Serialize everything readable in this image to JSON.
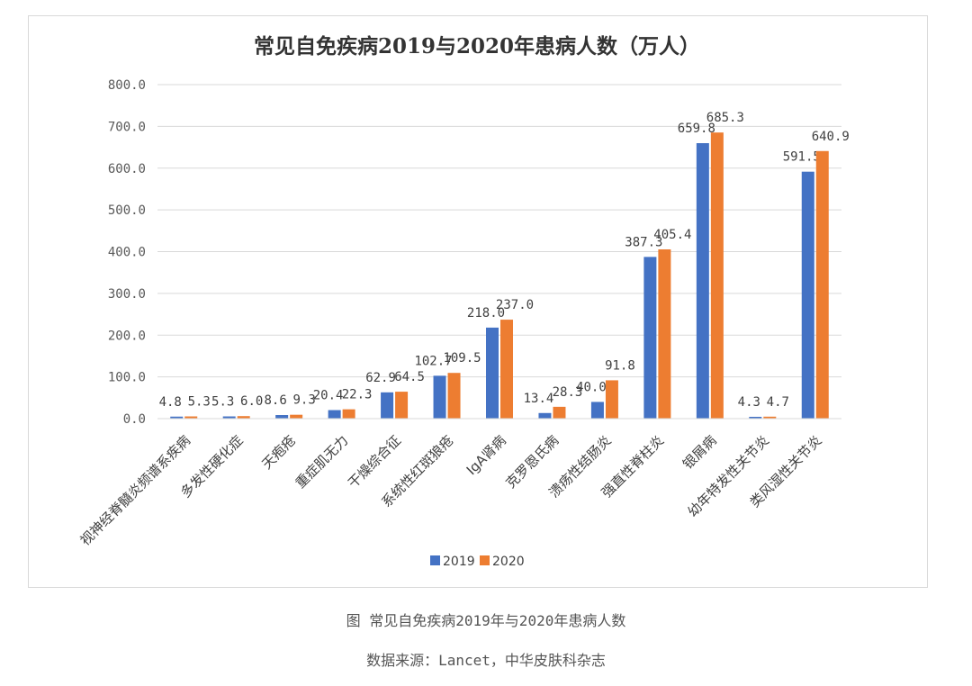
{
  "chart_data": {
    "type": "bar",
    "title": "常见自免疾病2019与2020年患病人数（万人）",
    "categories": [
      "视神经脊髓炎频谱系疾病",
      "多发性硬化症",
      "天疱疮",
      "重症肌无力",
      "干燥综合征",
      "系统性红斑狼疮",
      "IgA肾病",
      "克罗恩氏病",
      "溃疡性结肠炎",
      "强直性脊柱炎",
      "银屑病",
      "幼年特发性关节炎",
      "类风湿性关节炎"
    ],
    "series": [
      {
        "name": "2019",
        "color": "#4472c4",
        "values": [
          4.8,
          5.3,
          8.6,
          20.4,
          62.9,
          102.7,
          218.0,
          13.4,
          40.0,
          387.3,
          659.8,
          4.3,
          591.5
        ],
        "labels": [
          "4.8",
          "5.3",
          "8.6",
          "20.4",
          "62.9",
          "102.7",
          "218.0",
          "13.4",
          "40.0",
          "387.3",
          "659.8",
          "4.3",
          "591.5"
        ]
      },
      {
        "name": "2020",
        "color": "#ed7d31",
        "values": [
          5.3,
          6.0,
          9.3,
          22.3,
          64.5,
          109.5,
          237.0,
          28.3,
          91.8,
          405.4,
          685.3,
          4.7,
          640.9
        ],
        "labels": [
          "5.3",
          "6.0",
          "9.3",
          "22.3",
          "64.5",
          "109.5",
          "237.0",
          "28.3",
          "91.8",
          "405.4",
          "685.3",
          "4.7",
          "640.9"
        ]
      }
    ],
    "ylim": [
      0,
      800
    ],
    "yticks": [
      "0.0",
      "100.0",
      "200.0",
      "300.0",
      "400.0",
      "500.0",
      "600.0",
      "700.0",
      "800.0"
    ],
    "grid": true,
    "legend": "bottom"
  },
  "caption": "图 常见自免疾病2019年与2020年患病人数",
  "source": "数据来源：Lancet，中华皮肤科杂志"
}
